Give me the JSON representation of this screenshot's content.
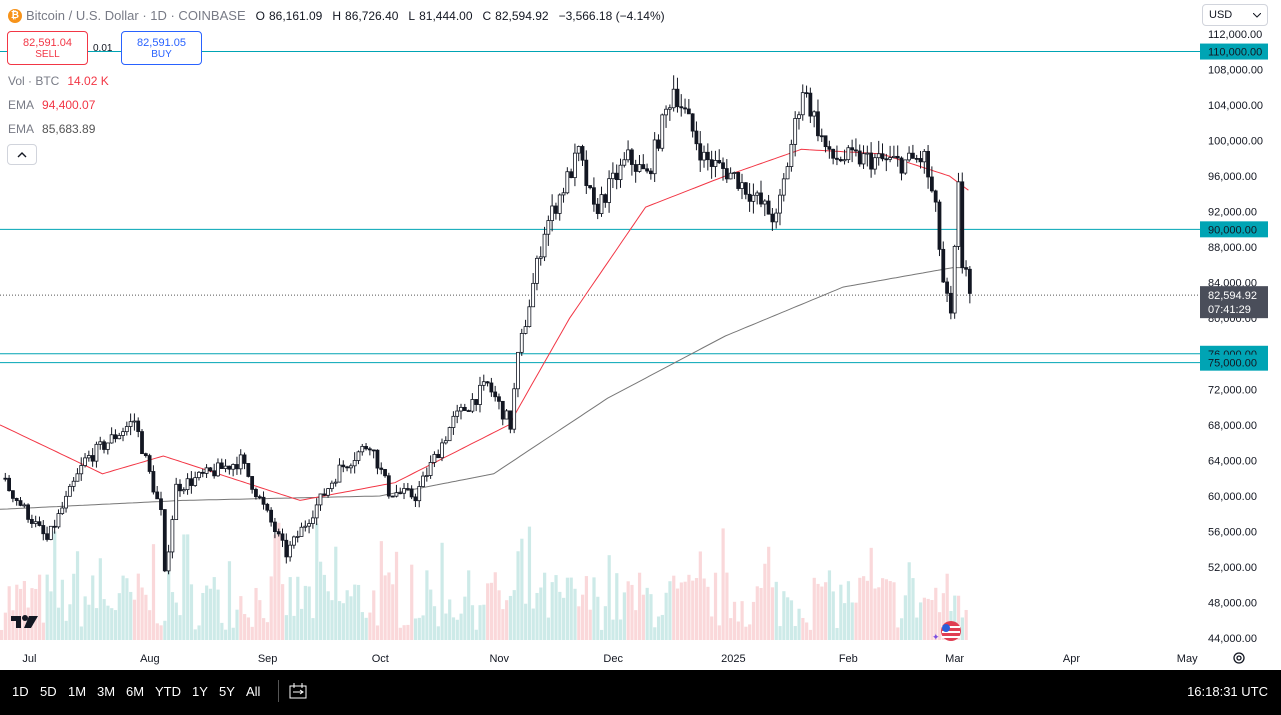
{
  "header": {
    "symbol": "Bitcoin / U.S. Dollar · 1D · COINBASE",
    "btc_glyph": "₿",
    "o_label": "O",
    "o_value": "86,161.09",
    "h_label": "H",
    "h_value": "86,726.40",
    "l_label": "L",
    "l_value": "81,444.00",
    "c_label": "C",
    "c_value": "82,594.92",
    "change": "−3,566.18 (−4.14%)"
  },
  "trade": {
    "sell_price": "82,591.04",
    "sell_label": "SELL",
    "spread": "0.01",
    "buy_price": "82,591.05",
    "buy_label": "BUY"
  },
  "indicators": [
    {
      "name": "Vol · BTC",
      "value": "14.02 K",
      "color": "#f23645"
    },
    {
      "name": "EMA",
      "value": "94,400.07",
      "color": "#f23645"
    },
    {
      "name": "EMA",
      "value": "85,683.89",
      "color": "#555555"
    }
  ],
  "currency": {
    "label": "USD",
    "icon": "chevron-down-icon"
  },
  "price_ticks": [
    "112,000.00",
    "108,000.00",
    "104,000.00",
    "100,000.00",
    "96,000.00",
    "92,000.00",
    "88,000.00",
    "84,000.00",
    "80,000.00",
    "72,000.00",
    "68,000.00",
    "64,000.00",
    "60,000.00",
    "56,000.00",
    "52,000.00",
    "48,000.00",
    "44,000.00"
  ],
  "tick_values": [
    112000,
    108000,
    104000,
    100000,
    96000,
    92000,
    88000,
    84000,
    80000,
    72000,
    68000,
    64000,
    60000,
    56000,
    52000,
    48000,
    44000
  ],
  "level_lines": [
    {
      "value": 110000,
      "label": "110,000.00"
    },
    {
      "value": 90000,
      "label": "90,000.00"
    },
    {
      "value": 76000,
      "label": "76,000.00"
    },
    {
      "value": 75000,
      "label": "75,000.00"
    }
  ],
  "last_price": {
    "value": 82594.92,
    "label": "82,594.92",
    "countdown": "07:41:29"
  },
  "time_axis": [
    "Jul",
    "Aug",
    "Sep",
    "Oct",
    "Nov",
    "Dec",
    "2025",
    "Feb",
    "Mar",
    "Apr",
    "May"
  ],
  "timeframes": [
    "1D",
    "5D",
    "1M",
    "3M",
    "6M",
    "YTD",
    "1Y",
    "5Y",
    "All"
  ],
  "clock": "16:18:31 UTC",
  "colors": {
    "up": "#131722",
    "down": "#131722",
    "level": "#00a4b4",
    "ema_fast": "#f23645",
    "ema_slow": "#777777"
  },
  "chart_data": {
    "type": "candlestick",
    "x_range": [
      "2024-06-23",
      "2025-05-05"
    ],
    "ylim": [
      42000,
      114000
    ],
    "price_path": [
      [
        "2024-06-23",
        62000
      ],
      [
        "2024-07-05",
        55000
      ],
      [
        "2024-07-15",
        64000
      ],
      [
        "2024-07-28",
        68500
      ],
      [
        "2024-08-04",
        58000
      ],
      [
        "2024-08-05",
        51000
      ],
      [
        "2024-08-08",
        61000
      ],
      [
        "2024-08-25",
        64000
      ],
      [
        "2024-09-06",
        53500
      ],
      [
        "2024-09-20",
        63000
      ],
      [
        "2024-09-28",
        66000
      ],
      [
        "2024-10-03",
        60500
      ],
      [
        "2024-10-10",
        60000
      ],
      [
        "2024-10-20",
        68500
      ],
      [
        "2024-10-29",
        72500
      ],
      [
        "2024-11-04",
        68000
      ],
      [
        "2024-11-06",
        75500
      ],
      [
        "2024-11-13",
        90000
      ],
      [
        "2024-11-22",
        98500
      ],
      [
        "2024-11-26",
        92000
      ],
      [
        "2024-12-05",
        98000
      ],
      [
        "2024-12-10",
        96000
      ],
      [
        "2024-12-17",
        106000
      ],
      [
        "2024-12-25",
        98000
      ],
      [
        "2025-01-02",
        96000
      ],
      [
        "2025-01-13",
        91000
      ],
      [
        "2025-01-20",
        106000
      ],
      [
        "2025-01-27",
        98000
      ],
      [
        "2025-02-03",
        98000
      ],
      [
        "2025-02-15",
        97500
      ],
      [
        "2025-02-21",
        98000
      ],
      [
        "2025-02-24",
        92000
      ],
      [
        "2025-02-26",
        84000
      ],
      [
        "2025-02-28",
        80000
      ],
      [
        "2025-03-02",
        94500
      ],
      [
        "2025-03-03",
        86000
      ],
      [
        "2025-03-04",
        86000
      ],
      [
        "2025-03-05",
        82595
      ]
    ],
    "ema_fast_path": [
      [
        "2024-06-23",
        68000
      ],
      [
        "2024-07-20",
        62500
      ],
      [
        "2024-08-05",
        64500
      ],
      [
        "2024-09-10",
        59500
      ],
      [
        "2024-10-05",
        61500
      ],
      [
        "2024-11-04",
        68000
      ],
      [
        "2024-11-20",
        80000
      ],
      [
        "2024-12-10",
        92500
      ],
      [
        "2024-12-31",
        96000
      ],
      [
        "2025-01-20",
        99000
      ],
      [
        "2025-02-10",
        98500
      ],
      [
        "2025-02-28",
        96000
      ],
      [
        "2025-03-05",
        94400
      ]
    ],
    "ema_slow_path": [
      [
        "2024-06-23",
        58500
      ],
      [
        "2024-08-10",
        59500
      ],
      [
        "2024-10-01",
        60000
      ],
      [
        "2024-10-31",
        62500
      ],
      [
        "2024-11-30",
        71000
      ],
      [
        "2024-12-31",
        78000
      ],
      [
        "2025-01-31",
        83500
      ],
      [
        "2025-03-01",
        85700
      ],
      [
        "2025-03-05",
        85684
      ]
    ]
  }
}
